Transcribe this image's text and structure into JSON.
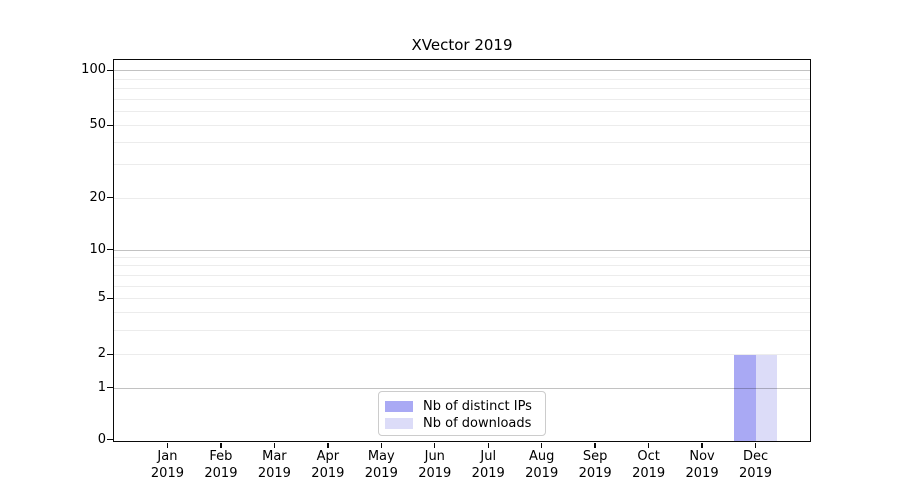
{
  "chart_data": {
    "type": "bar",
    "title": "XVector 2019",
    "categories": [
      "Jan 2019",
      "Feb 2019",
      "Mar 2019",
      "Apr 2019",
      "May 2019",
      "Jun 2019",
      "Jul 2019",
      "Aug 2019",
      "Sep 2019",
      "Oct 2019",
      "Nov 2019",
      "Dec 2019"
    ],
    "series": [
      {
        "name": "Nb of distinct IPs",
        "color": "#a9a9f4",
        "values": [
          0,
          0,
          0,
          0,
          0,
          0,
          0,
          0,
          0,
          0,
          0,
          2
        ]
      },
      {
        "name": "Nb of downloads",
        "color": "#dcdcf8",
        "values": [
          0,
          0,
          0,
          0,
          0,
          0,
          0,
          0,
          0,
          0,
          0,
          2
        ]
      }
    ],
    "xlabel": "",
    "ylabel": "",
    "yscale": "symlog-like (log decades above 1, compressed linear segment 0-1)",
    "ylim": [
      0,
      115
    ],
    "yticks": [
      100,
      50,
      20,
      10,
      5,
      2,
      1,
      0
    ],
    "minor_gridline_values": [
      90,
      80,
      70,
      60,
      50,
      40,
      30,
      20,
      9,
      8,
      7,
      6,
      5,
      4,
      3,
      2
    ],
    "decade_gridline_values": [
      100,
      10,
      1
    ],
    "grid": {
      "horizontal": true,
      "vertical": false,
      "minor": true
    },
    "legend_position": "lower center inside plot",
    "background": "#ffffff"
  },
  "legend": {
    "items": [
      {
        "label": "Nb of distinct IPs",
        "color": "#a9a9f4"
      },
      {
        "label": "Nb of downloads",
        "color": "#dcdcf8"
      }
    ]
  }
}
